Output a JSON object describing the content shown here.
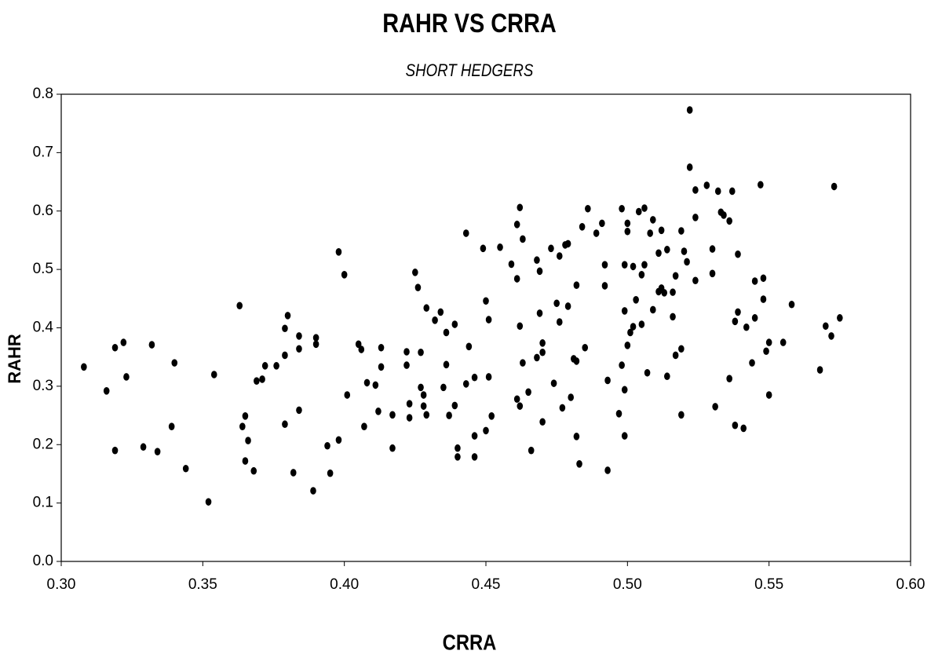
{
  "chart_data": {
    "type": "scatter",
    "title": "RAHR VS CRRA",
    "subtitle": "SHORT HEDGERS",
    "x_label": "CRRA",
    "y_label": "RAHR",
    "color": "#000000",
    "xlim": [
      0.3,
      0.6
    ],
    "ylim": [
      0.0,
      0.8
    ],
    "xticks": [
      {
        "value": 0.3,
        "label": "0.30"
      },
      0.35,
      {
        "value": 0.4,
        "label": "0.40"
      },
      0.45,
      {
        "value": 0.5,
        "label": "0.50"
      },
      0.55,
      {
        "value": 0.6,
        "label": "0.60"
      }
    ],
    "yticks": [
      {
        "value": 0.0,
        "label": "0.0"
      },
      0.1,
      0.2,
      0.3,
      0.4,
      0.5,
      0.6,
      0.7,
      0.8
    ],
    "grid": false,
    "x": [
      0.308,
      0.316,
      0.319,
      0.319,
      0.322,
      0.323,
      0.329,
      0.332,
      0.334,
      0.339,
      0.34,
      0.344,
      0.352,
      0.354,
      0.363,
      0.364,
      0.365,
      0.365,
      0.366,
      0.368,
      0.369,
      0.371,
      0.372,
      0.376,
      0.379,
      0.379,
      0.379,
      0.38,
      0.382,
      0.384,
      0.384,
      0.384,
      0.389,
      0.39,
      0.39,
      0.394,
      0.395,
      0.398,
      0.398,
      0.4,
      0.401,
      0.405,
      0.406,
      0.407,
      0.408,
      0.411,
      0.412,
      0.413,
      0.413,
      0.417,
      0.417,
      0.422,
      0.422,
      0.423,
      0.423,
      0.425,
      0.426,
      0.427,
      0.427,
      0.428,
      0.428,
      0.429,
      0.429,
      0.432,
      0.434,
      0.435,
      0.436,
      0.436,
      0.437,
      0.439,
      0.439,
      0.44,
      0.44,
      0.443,
      0.443,
      0.444,
      0.446,
      0.446,
      0.446,
      0.449,
      0.45,
      0.45,
      0.451,
      0.451,
      0.452,
      0.455,
      0.459,
      0.461,
      0.461,
      0.461,
      0.462,
      0.462,
      0.462,
      0.463,
      0.463,
      0.465,
      0.466,
      0.468,
      0.468,
      0.469,
      0.469,
      0.47,
      0.47,
      0.47,
      0.473,
      0.474,
      0.475,
      0.476,
      0.476,
      0.477,
      0.478,
      0.479,
      0.479,
      0.48,
      0.481,
      0.482,
      0.482,
      0.482,
      0.483,
      0.484,
      0.485,
      0.486,
      0.489,
      0.491,
      0.492,
      0.492,
      0.493,
      0.493,
      0.497,
      0.498,
      0.498,
      0.499,
      0.499,
      0.499,
      0.5,
      0.499,
      0.5,
      0.5,
      0.501,
      0.502,
      0.502,
      0.503,
      0.504,
      0.505,
      0.505,
      0.506,
      0.506,
      0.507,
      0.508,
      0.509,
      0.509,
      0.511,
      0.511,
      0.512,
      0.512,
      0.513,
      0.514,
      0.514,
      0.516,
      0.516,
      0.517,
      0.517,
      0.519,
      0.519,
      0.519,
      0.52,
      0.521,
      0.522,
      0.522,
      0.524,
      0.524,
      0.524,
      0.528,
      0.53,
      0.53,
      0.531,
      0.532,
      0.533,
      0.534,
      0.536,
      0.536,
      0.537,
      0.538,
      0.538,
      0.539,
      0.539,
      0.541,
      0.542,
      0.544,
      0.545,
      0.545,
      0.547,
      0.548,
      0.548,
      0.549,
      0.55,
      0.55,
      0.555,
      0.558,
      0.568,
      0.57,
      0.572,
      0.573,
      0.575
    ],
    "values": [
      0.333,
      0.292,
      0.366,
      0.19,
      0.375,
      0.316,
      0.196,
      0.371,
      0.188,
      0.231,
      0.34,
      0.159,
      0.102,
      0.32,
      0.438,
      0.231,
      0.249,
      0.172,
      0.207,
      0.155,
      0.309,
      0.312,
      0.335,
      0.335,
      0.353,
      0.235,
      0.399,
      0.421,
      0.152,
      0.364,
      0.386,
      0.259,
      0.121,
      0.383,
      0.372,
      0.198,
      0.151,
      0.208,
      0.53,
      0.491,
      0.285,
      0.372,
      0.363,
      0.231,
      0.306,
      0.302,
      0.257,
      0.366,
      0.333,
      0.251,
      0.194,
      0.359,
      0.336,
      0.246,
      0.27,
      0.495,
      0.469,
      0.298,
      0.358,
      0.266,
      0.285,
      0.251,
      0.434,
      0.413,
      0.427,
      0.298,
      0.337,
      0.392,
      0.25,
      0.406,
      0.267,
      0.194,
      0.179,
      0.562,
      0.304,
      0.368,
      0.315,
      0.215,
      0.179,
      0.536,
      0.446,
      0.224,
      0.414,
      0.316,
      0.249,
      0.538,
      0.509,
      0.577,
      0.484,
      0.278,
      0.606,
      0.403,
      0.266,
      0.552,
      0.34,
      0.29,
      0.19,
      0.516,
      0.349,
      0.497,
      0.425,
      0.358,
      0.374,
      0.239,
      0.536,
      0.305,
      0.442,
      0.523,
      0.41,
      0.263,
      0.542,
      0.544,
      0.437,
      0.281,
      0.347,
      0.473,
      0.214,
      0.343,
      0.167,
      0.573,
      0.366,
      0.604,
      0.562,
      0.579,
      0.508,
      0.472,
      0.156,
      0.31,
      0.253,
      0.604,
      0.336,
      0.215,
      0.508,
      0.294,
      0.579,
      0.429,
      0.565,
      0.37,
      0.392,
      0.505,
      0.402,
      0.448,
      0.599,
      0.406,
      0.491,
      0.508,
      0.605,
      0.323,
      0.562,
      0.431,
      0.585,
      0.462,
      0.528,
      0.567,
      0.468,
      0.46,
      0.317,
      0.534,
      0.419,
      0.461,
      0.353,
      0.489,
      0.251,
      0.364,
      0.566,
      0.531,
      0.513,
      0.773,
      0.675,
      0.589,
      0.636,
      0.481,
      0.644,
      0.535,
      0.493,
      0.265,
      0.634,
      0.598,
      0.593,
      0.583,
      0.313,
      0.634,
      0.233,
      0.411,
      0.427,
      0.526,
      0.228,
      0.401,
      0.34,
      0.417,
      0.48,
      0.645,
      0.485,
      0.449,
      0.36,
      0.375,
      0.285,
      0.375,
      0.44,
      0.328,
      0.403,
      0.386,
      0.642,
      0.417
    ]
  }
}
